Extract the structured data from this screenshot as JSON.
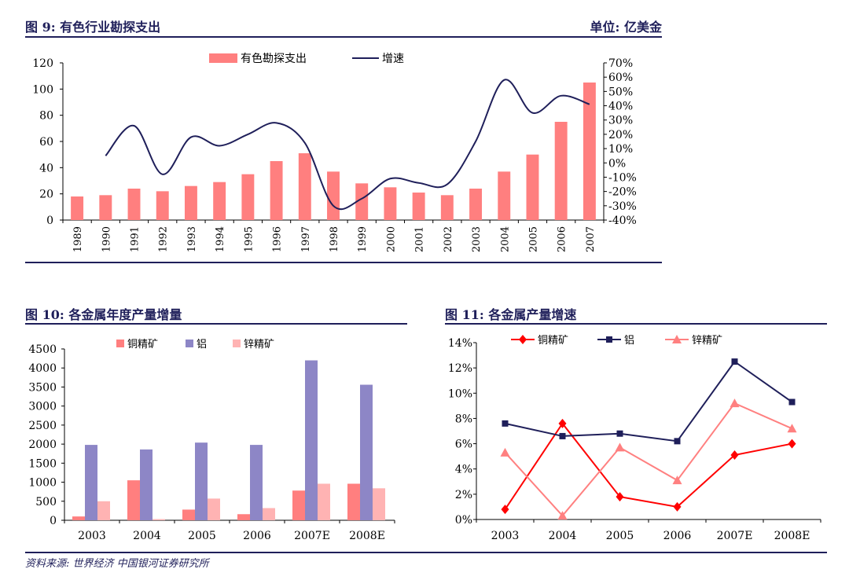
{
  "fig9": {
    "title": "图 9:  有色行业勘探支出",
    "unit": "单位:  亿美金"
  },
  "fig10": {
    "title": "图 10:  各金属年度产量增量"
  },
  "fig11": {
    "title": "图 11:  各金属产量增速"
  },
  "source": "资料来源:  世界经济  中国银河证券研究所",
  "colors": {
    "navy": "#1f1f5a",
    "salmon": "#ff7f7f",
    "purple": "#8d86c6",
    "pink": "#ffb3b3",
    "red": "#ff0000",
    "lightred": "#ff8080"
  },
  "chart_data": [
    {
      "id": "fig9",
      "type": "bar",
      "categories": [
        "1989",
        "1990",
        "1991",
        "1992",
        "1993",
        "1994",
        "1995",
        "1996",
        "1997",
        "1998",
        "1999",
        "2000",
        "2001",
        "2002",
        "2003",
        "2004",
        "2005",
        "2006",
        "2007"
      ],
      "series": [
        {
          "name": "有色勘探支出",
          "type": "bar",
          "axis": "left",
          "values": [
            18,
            19,
            24,
            22,
            26,
            29,
            35,
            45,
            51,
            37,
            28,
            25,
            21,
            19,
            24,
            37,
            50,
            75,
            105
          ]
        },
        {
          "name": "增速",
          "type": "line",
          "axis": "right",
          "values": [
            null,
            0.05,
            0.26,
            -0.08,
            0.18,
            0.12,
            0.2,
            0.28,
            0.14,
            -0.3,
            -0.25,
            -0.11,
            -0.14,
            -0.15,
            0.15,
            0.58,
            0.35,
            0.47,
            0.41
          ]
        }
      ],
      "yleft": {
        "min": 0,
        "max": 120,
        "ticks": [
          "0",
          "20",
          "40",
          "60",
          "80",
          "100",
          "120"
        ]
      },
      "yright": {
        "min": -0.4,
        "max": 0.7,
        "ticks": [
          "-40%",
          "-30%",
          "-20%",
          "-10%",
          "0%",
          "10%",
          "20%",
          "30%",
          "40%",
          "50%",
          "60%",
          "70%"
        ]
      },
      "legend": "top-center"
    },
    {
      "id": "fig10",
      "type": "bar",
      "categories": [
        "2003",
        "2004",
        "2005",
        "2006",
        "2007E",
        "2008E"
      ],
      "series": [
        {
          "name": "铜精矿",
          "values": [
            100,
            1050,
            280,
            160,
            780,
            960
          ]
        },
        {
          "name": "铝",
          "values": [
            1980,
            1860,
            2040,
            1980,
            4200,
            3560
          ]
        },
        {
          "name": "锌精矿",
          "values": [
            500,
            30,
            570,
            320,
            960,
            840
          ]
        }
      ],
      "ylim": [
        0,
        4500
      ],
      "yticks": [
        "0",
        "500",
        "1000",
        "1500",
        "2000",
        "2500",
        "3000",
        "3500",
        "4000",
        "4500"
      ],
      "legend": "top-center"
    },
    {
      "id": "fig11",
      "type": "line",
      "categories": [
        "2003",
        "2004",
        "2005",
        "2006",
        "2007E",
        "2008E"
      ],
      "series": [
        {
          "name": "铜精矿",
          "marker": "diamond",
          "values": [
            0.008,
            0.076,
            0.018,
            0.01,
            0.051,
            0.06
          ]
        },
        {
          "name": "铝",
          "marker": "square",
          "values": [
            0.076,
            0.066,
            0.068,
            0.062,
            0.125,
            0.093
          ]
        },
        {
          "name": "锌精矿",
          "marker": "triangle",
          "values": [
            0.053,
            0.003,
            0.057,
            0.031,
            0.092,
            0.072
          ]
        }
      ],
      "ylim": [
        0,
        0.14
      ],
      "yticks": [
        "0%",
        "2%",
        "4%",
        "6%",
        "8%",
        "10%",
        "12%",
        "14%"
      ],
      "legend": "top-center"
    }
  ]
}
